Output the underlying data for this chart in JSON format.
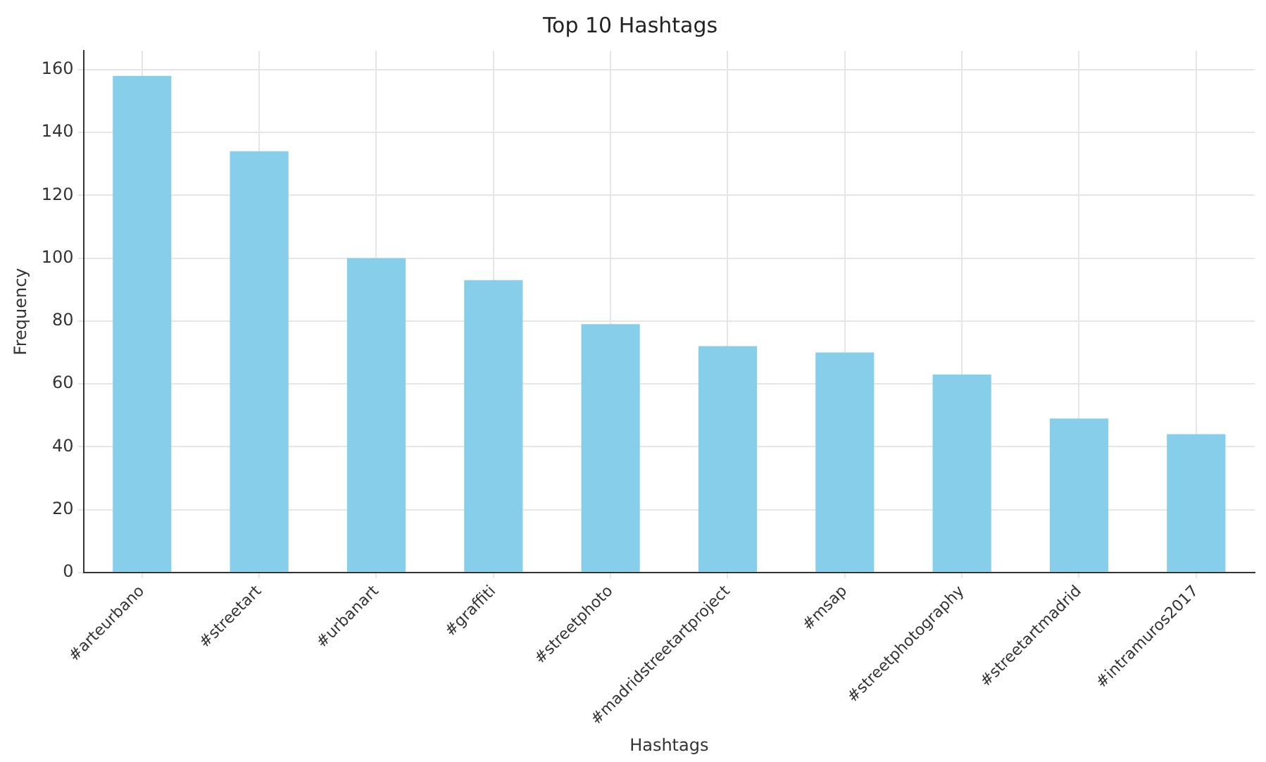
{
  "chart_data": {
    "type": "bar",
    "title": "Top 10 Hashtags",
    "xlabel": "Hashtags",
    "ylabel": "Frequency",
    "categories": [
      "#arteurbano",
      "#streetart",
      "#urbanart",
      "#graffiti",
      "#streetphoto",
      "#madridstreetartproject",
      "#msap",
      "#streetphotography",
      "#streetartmadrid",
      "#intramuros2017"
    ],
    "values": [
      158,
      134,
      100,
      93,
      79,
      72,
      70,
      63,
      49,
      44
    ],
    "color": "#87ceeb",
    "ylim": [
      0,
      166
    ],
    "yticks": [
      0,
      20,
      40,
      60,
      80,
      100,
      120,
      140,
      160
    ],
    "grid": true
  }
}
